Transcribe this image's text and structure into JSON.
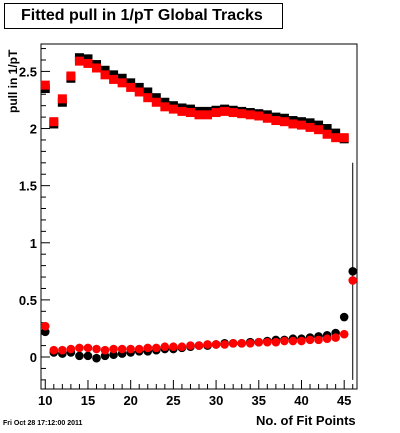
{
  "chart_data": {
    "type": "scatter",
    "title": "Fitted pull in 1/pT  Global Tracks",
    "xlabel": "No. of Fit Points",
    "ylabel": "pull in 1/pT",
    "xlim": [
      9.5,
      46.5
    ],
    "ylim": [
      -0.28,
      2.74
    ],
    "xticks": [
      "10",
      "15",
      "20",
      "25",
      "30",
      "35",
      "40",
      "45"
    ],
    "yticks": [
      "0",
      "0.5",
      "1",
      "1.5",
      "2",
      "2.5"
    ],
    "x": [
      10,
      11,
      12,
      13,
      14,
      15,
      16,
      17,
      18,
      19,
      20,
      21,
      22,
      23,
      24,
      25,
      26,
      27,
      28,
      29,
      30,
      31,
      32,
      33,
      34,
      35,
      36,
      37,
      38,
      39,
      40,
      41,
      42,
      43,
      44,
      45,
      46
    ],
    "series": [
      {
        "marker": "square",
        "color": "#000000",
        "values": [
          2.35,
          2.04,
          2.23,
          2.44,
          2.62,
          2.61,
          2.56,
          2.51,
          2.47,
          2.44,
          2.4,
          2.36,
          2.32,
          2.27,
          2.23,
          2.2,
          2.18,
          2.17,
          2.15,
          2.15,
          2.16,
          2.17,
          2.16,
          2.15,
          2.14,
          2.13,
          2.12,
          2.1,
          2.09,
          2.07,
          2.06,
          2.05,
          2.03,
          2.0,
          1.96,
          1.91,
          null
        ]
      },
      {
        "marker": "square",
        "color": "#ff0000",
        "values": [
          2.38,
          2.06,
          2.26,
          2.46,
          2.59,
          2.57,
          2.53,
          2.47,
          2.43,
          2.4,
          2.36,
          2.32,
          2.27,
          2.23,
          2.19,
          2.17,
          2.15,
          2.14,
          2.12,
          2.12,
          2.14,
          2.15,
          2.14,
          2.13,
          2.12,
          2.11,
          2.09,
          2.07,
          2.06,
          2.04,
          2.03,
          2.01,
          1.99,
          1.95,
          1.92,
          1.92,
          null
        ]
      },
      {
        "marker": "circle",
        "color": "#000000",
        "values": [
          0.22,
          0.04,
          0.03,
          0.04,
          0.01,
          0.01,
          -0.01,
          0.01,
          0.02,
          0.03,
          0.04,
          0.05,
          0.05,
          0.06,
          0.07,
          0.07,
          0.08,
          0.09,
          0.1,
          0.1,
          0.11,
          0.12,
          0.12,
          0.12,
          0.13,
          0.13,
          0.14,
          0.15,
          0.15,
          0.16,
          0.16,
          0.17,
          0.18,
          0.19,
          0.21,
          0.35,
          0.75
        ],
        "error_last": 0.95
      },
      {
        "marker": "circle",
        "color": "#ff0000",
        "values": [
          0.27,
          0.06,
          0.06,
          0.07,
          0.08,
          0.08,
          0.07,
          0.06,
          0.07,
          0.07,
          0.07,
          0.07,
          0.08,
          0.08,
          0.09,
          0.09,
          0.09,
          0.1,
          0.1,
          0.11,
          0.11,
          0.11,
          0.12,
          0.12,
          0.12,
          0.13,
          0.13,
          0.13,
          0.14,
          0.14,
          0.14,
          0.15,
          0.15,
          0.16,
          0.17,
          0.2,
          0.67
        ]
      }
    ]
  },
  "timestamp": "Fri Oct 28 17:12:00 2011"
}
